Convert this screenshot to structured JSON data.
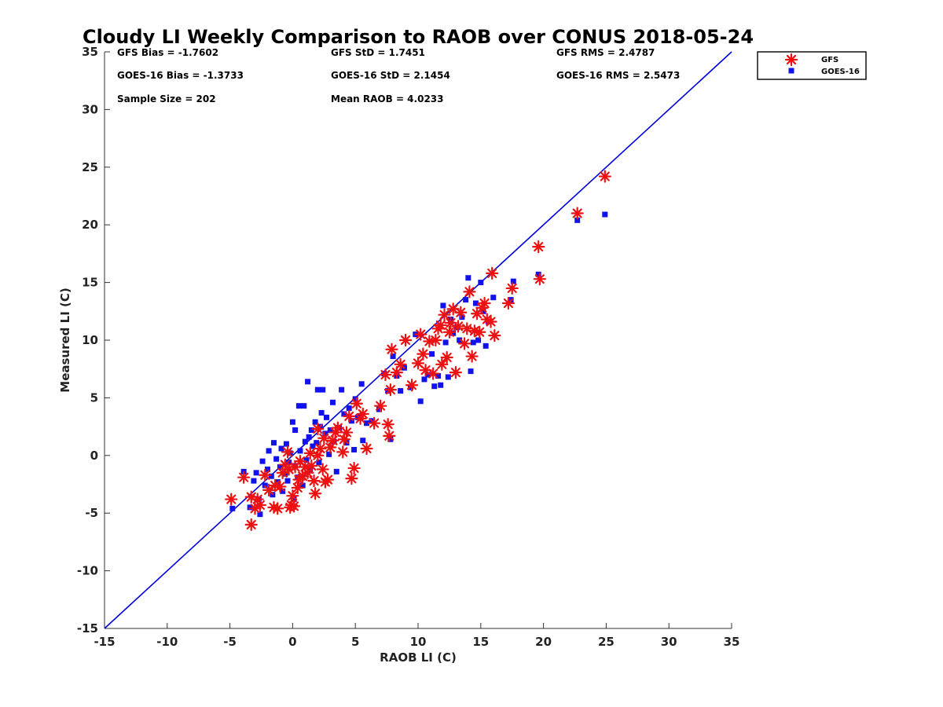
{
  "chart_data": {
    "type": "scatter",
    "title": "Cloudy LI Weekly Comparison to RAOB over CONUS 2018-05-24",
    "xlabel": "RAOB LI (C)",
    "ylabel": "Measured LI (C)",
    "xlim": [
      -15,
      35
    ],
    "ylim": [
      -15,
      35
    ],
    "xticks": [
      "-15",
      "-10",
      "-5",
      "0",
      "5",
      "10",
      "15",
      "20",
      "25",
      "30",
      "35"
    ],
    "yticks": [
      "-15",
      "-10",
      "-5",
      "0",
      "5",
      "10",
      "15",
      "20",
      "25",
      "30",
      "35"
    ],
    "grid": false,
    "legend_position": "outside-top-right",
    "reference_line": {
      "x": [
        -15,
        35
      ],
      "y": [
        -15,
        35
      ],
      "color": "#0000dd"
    },
    "stats": [
      [
        "GFS Bias = -1.7602",
        "GFS StD = 1.7451",
        "GFS RMS = 2.4787"
      ],
      [
        "GOES-16 Bias = -1.3733",
        "GOES-16 StD = 2.1454",
        "GOES-16 RMS = 2.5473"
      ],
      [
        "Sample Size = 202",
        "Mean RAOB = 4.0233",
        ""
      ]
    ],
    "series": [
      {
        "name": "GFS",
        "marker": "asterisk",
        "color": "#ee1111",
        "points": [
          [
            -4.9,
            -3.8
          ],
          [
            -3.9,
            -1.9
          ],
          [
            -3.3,
            -3.6
          ],
          [
            -3.3,
            -6.0
          ],
          [
            -3.0,
            -4.6
          ],
          [
            -2.8,
            -3.8
          ],
          [
            -2.6,
            -4.3
          ],
          [
            -2.2,
            -1.7
          ],
          [
            -1.9,
            -3.0
          ],
          [
            -1.5,
            -4.5
          ],
          [
            -1.4,
            -2.6
          ],
          [
            -1.2,
            -4.6
          ],
          [
            -1.0,
            -2.7
          ],
          [
            -0.8,
            -1.5
          ],
          [
            -0.6,
            -0.8
          ],
          [
            -0.4,
            0.3
          ],
          [
            -0.3,
            -1.2
          ],
          [
            -0.2,
            -4.5
          ],
          [
            -0.1,
            -4.3
          ],
          [
            0.0,
            -3.5
          ],
          [
            0.1,
            -4.4
          ],
          [
            0.2,
            -1.0
          ],
          [
            0.4,
            -2.8
          ],
          [
            0.5,
            -2.1
          ],
          [
            0.6,
            -0.5
          ],
          [
            0.8,
            -1.8
          ],
          [
            1.0,
            -1.0
          ],
          [
            1.2,
            -1.5
          ],
          [
            1.4,
            0.2
          ],
          [
            1.5,
            -0.9
          ],
          [
            1.7,
            -2.2
          ],
          [
            1.8,
            -3.3
          ],
          [
            2.0,
            0.0
          ],
          [
            2.0,
            2.3
          ],
          [
            2.2,
            0.6
          ],
          [
            2.4,
            -1.2
          ],
          [
            2.5,
            1.5
          ],
          [
            2.6,
            -2.3
          ],
          [
            2.8,
            -2.1
          ],
          [
            3.0,
            0.7
          ],
          [
            3.2,
            1.3
          ],
          [
            3.4,
            2.0
          ],
          [
            3.6,
            2.4
          ],
          [
            4.0,
            0.3
          ],
          [
            4.1,
            1.4
          ],
          [
            4.3,
            2.0
          ],
          [
            4.5,
            3.4
          ],
          [
            4.7,
            -2.0
          ],
          [
            4.9,
            -1.1
          ],
          [
            5.1,
            4.5
          ],
          [
            5.4,
            3.2
          ],
          [
            5.6,
            3.6
          ],
          [
            5.9,
            0.6
          ],
          [
            6.5,
            2.8
          ],
          [
            7.0,
            4.3
          ],
          [
            7.4,
            7.0
          ],
          [
            7.6,
            2.7
          ],
          [
            7.7,
            1.7
          ],
          [
            7.8,
            5.7
          ],
          [
            7.9,
            9.2
          ],
          [
            8.3,
            7.2
          ],
          [
            8.6,
            7.9
          ],
          [
            9.0,
            10.0
          ],
          [
            9.5,
            6.1
          ],
          [
            10.0,
            8.0
          ],
          [
            10.2,
            10.5
          ],
          [
            10.4,
            8.8
          ],
          [
            10.6,
            7.4
          ],
          [
            10.9,
            9.9
          ],
          [
            11.2,
            7.1
          ],
          [
            11.4,
            10.0
          ],
          [
            11.6,
            11.0
          ],
          [
            11.8,
            11.3
          ],
          [
            11.9,
            7.9
          ],
          [
            12.1,
            12.2
          ],
          [
            12.3,
            8.5
          ],
          [
            12.5,
            10.7
          ],
          [
            12.6,
            11.5
          ],
          [
            12.8,
            12.7
          ],
          [
            13.0,
            7.2
          ],
          [
            13.2,
            11.2
          ],
          [
            13.4,
            12.4
          ],
          [
            13.7,
            9.7
          ],
          [
            13.9,
            11.0
          ],
          [
            14.1,
            14.2
          ],
          [
            14.3,
            8.6
          ],
          [
            14.5,
            10.8
          ],
          [
            14.7,
            12.3
          ],
          [
            14.9,
            10.7
          ],
          [
            15.1,
            12.8
          ],
          [
            15.3,
            13.2
          ],
          [
            15.5,
            11.8
          ],
          [
            15.8,
            11.6
          ],
          [
            15.9,
            15.8
          ],
          [
            16.1,
            10.4
          ],
          [
            17.2,
            13.2
          ],
          [
            17.5,
            14.5
          ],
          [
            19.6,
            18.1
          ],
          [
            19.7,
            15.3
          ],
          [
            22.7,
            21.0
          ],
          [
            24.9,
            24.2
          ]
        ]
      },
      {
        "name": "GOES-16",
        "marker": "square",
        "color": "#1111ee",
        "points": [
          [
            -4.8,
            -4.6
          ],
          [
            -3.9,
            -1.4
          ],
          [
            -3.4,
            -4.5
          ],
          [
            -3.1,
            -2.2
          ],
          [
            -2.9,
            -1.5
          ],
          [
            -2.7,
            -3.8
          ],
          [
            -2.6,
            -5.1
          ],
          [
            -2.4,
            -0.5
          ],
          [
            -2.2,
            -2.6
          ],
          [
            -2.0,
            -1.2
          ],
          [
            -1.9,
            0.4
          ],
          [
            -1.7,
            -1.8
          ],
          [
            -1.6,
            -3.4
          ],
          [
            -1.5,
            1.1
          ],
          [
            -1.3,
            -0.3
          ],
          [
            -1.2,
            -2.3
          ],
          [
            -1.0,
            -1.0
          ],
          [
            -0.9,
            0.6
          ],
          [
            -0.8,
            -3.1
          ],
          [
            -0.6,
            -1.6
          ],
          [
            -0.5,
            1.0
          ],
          [
            -0.4,
            -2.2
          ],
          [
            -0.3,
            -0.6
          ],
          [
            -0.2,
            0.2
          ],
          [
            0.0,
            2.9
          ],
          [
            0.1,
            -3.8
          ],
          [
            0.2,
            -0.9
          ],
          [
            0.2,
            2.2
          ],
          [
            0.4,
            -1.9
          ],
          [
            0.5,
            4.3
          ],
          [
            0.6,
            0.4
          ],
          [
            0.8,
            -2.6
          ],
          [
            0.9,
            4.3
          ],
          [
            1.0,
            1.2
          ],
          [
            1.1,
            -0.4
          ],
          [
            1.2,
            6.4
          ],
          [
            1.3,
            1.6
          ],
          [
            1.4,
            -1.3
          ],
          [
            1.5,
            2.2
          ],
          [
            1.6,
            0.8
          ],
          [
            1.8,
            2.9
          ],
          [
            1.9,
            1.1
          ],
          [
            2.0,
            5.7
          ],
          [
            2.1,
            -0.6
          ],
          [
            2.2,
            2.5
          ],
          [
            2.3,
            3.7
          ],
          [
            2.4,
            5.7
          ],
          [
            2.6,
            1.9
          ],
          [
            2.7,
            3.3
          ],
          [
            2.9,
            0.1
          ],
          [
            3.0,
            2.2
          ],
          [
            3.2,
            4.6
          ],
          [
            3.3,
            1.2
          ],
          [
            3.5,
            -1.4
          ],
          [
            3.7,
            2.4
          ],
          [
            3.9,
            5.7
          ],
          [
            4.1,
            3.6
          ],
          [
            4.3,
            1.1
          ],
          [
            4.5,
            4.1
          ],
          [
            4.7,
            3.0
          ],
          [
            4.9,
            0.5
          ],
          [
            5.0,
            4.9
          ],
          [
            5.2,
            3.3
          ],
          [
            5.5,
            6.2
          ],
          [
            5.6,
            1.3
          ],
          [
            5.9,
            2.8
          ],
          [
            6.3,
            3.0
          ],
          [
            6.9,
            4.0
          ],
          [
            7.3,
            7.1
          ],
          [
            7.6,
            5.6
          ],
          [
            7.8,
            1.4
          ],
          [
            8.0,
            8.6
          ],
          [
            8.3,
            6.9
          ],
          [
            8.6,
            5.6
          ],
          [
            8.9,
            7.6
          ],
          [
            9.4,
            5.9
          ],
          [
            9.8,
            10.5
          ],
          [
            10.2,
            4.7
          ],
          [
            10.5,
            6.6
          ],
          [
            10.8,
            7.0
          ],
          [
            11.1,
            8.8
          ],
          [
            11.3,
            6.0
          ],
          [
            11.6,
            6.9
          ],
          [
            11.8,
            6.1
          ],
          [
            12.0,
            13.0
          ],
          [
            12.2,
            9.8
          ],
          [
            12.4,
            6.8
          ],
          [
            12.6,
            11.8
          ],
          [
            12.8,
            10.6
          ],
          [
            13.1,
            11.1
          ],
          [
            13.3,
            10.0
          ],
          [
            13.5,
            12.0
          ],
          [
            13.8,
            13.5
          ],
          [
            14.0,
            15.4
          ],
          [
            14.2,
            7.3
          ],
          [
            14.4,
            9.8
          ],
          [
            14.6,
            13.2
          ],
          [
            14.8,
            10.0
          ],
          [
            15.0,
            15.0
          ],
          [
            15.2,
            12.5
          ],
          [
            15.4,
            9.5
          ],
          [
            15.6,
            11.6
          ],
          [
            16.0,
            13.7
          ],
          [
            17.4,
            13.5
          ],
          [
            17.6,
            15.1
          ],
          [
            19.6,
            15.7
          ],
          [
            22.7,
            20.4
          ],
          [
            24.9,
            20.9
          ]
        ]
      }
    ]
  }
}
